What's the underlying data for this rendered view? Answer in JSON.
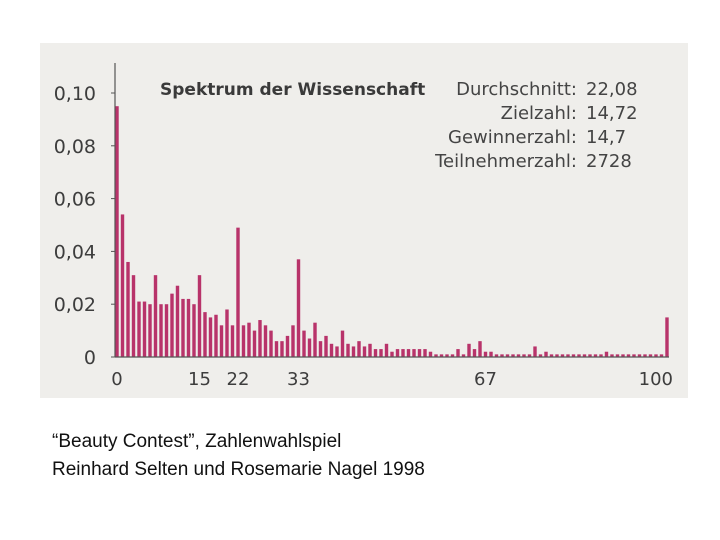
{
  "chart_data": {
    "type": "bar",
    "title": "Spektrum der Wissenschaft",
    "xlim": [
      0,
      100
    ],
    "ylim": [
      0,
      0.1
    ],
    "y_ticks": [
      "0,10",
      "0,08",
      "0,06",
      "0,04",
      "0,02",
      "0"
    ],
    "x_ticks": [
      "0",
      "15",
      "22",
      "33",
      "67",
      "100"
    ],
    "bar_color": "#b8336a",
    "x": [
      0,
      1,
      2,
      3,
      4,
      5,
      6,
      7,
      8,
      9,
      10,
      11,
      12,
      13,
      14,
      15,
      16,
      17,
      18,
      19,
      20,
      21,
      22,
      23,
      24,
      25,
      26,
      27,
      28,
      29,
      30,
      31,
      32,
      33,
      34,
      35,
      36,
      37,
      38,
      39,
      40,
      41,
      42,
      43,
      44,
      45,
      46,
      47,
      48,
      49,
      50,
      51,
      52,
      53,
      54,
      55,
      56,
      57,
      58,
      59,
      60,
      61,
      62,
      63,
      64,
      65,
      66,
      67,
      68,
      69,
      70,
      71,
      72,
      73,
      74,
      75,
      76,
      77,
      78,
      79,
      80,
      81,
      82,
      83,
      84,
      85,
      86,
      87,
      88,
      89,
      90,
      91,
      92,
      93,
      94,
      95,
      96,
      97,
      98,
      99,
      100
    ],
    "values": [
      0.095,
      0.054,
      0.036,
      0.031,
      0.021,
      0.021,
      0.02,
      0.031,
      0.02,
      0.02,
      0.024,
      0.027,
      0.022,
      0.022,
      0.02,
      0.031,
      0.017,
      0.015,
      0.016,
      0.012,
      0.018,
      0.012,
      0.049,
      0.012,
      0.013,
      0.01,
      0.014,
      0.012,
      0.01,
      0.006,
      0.006,
      0.008,
      0.012,
      0.037,
      0.01,
      0.007,
      0.013,
      0.006,
      0.008,
      0.005,
      0.004,
      0.01,
      0.005,
      0.004,
      0.006,
      0.004,
      0.005,
      0.003,
      0.003,
      0.005,
      0.002,
      0.003,
      0.003,
      0.003,
      0.003,
      0.003,
      0.003,
      0.002,
      0.001,
      0.001,
      0.001,
      0.001,
      0.003,
      0.001,
      0.005,
      0.003,
      0.006,
      0.002,
      0.002,
      0.001,
      0.001,
      0.001,
      0.001,
      0.001,
      0.001,
      0.001,
      0.004,
      0.001,
      0.002,
      0.001,
      0.001,
      0.001,
      0.001,
      0.001,
      0.001,
      0.001,
      0.001,
      0.001,
      0.001,
      0.002,
      0.001,
      0.001,
      0.001,
      0.001,
      0.001,
      0.001,
      0.001,
      0.001,
      0.001,
      0.001,
      0.015
    ],
    "stats": [
      {
        "label": "Durchschnitt:",
        "value": "22,08"
      },
      {
        "label": "Zielzahl:",
        "value": "14,72"
      },
      {
        "label": "Gewinnerzahl:",
        "value": "14,7"
      },
      {
        "label": "Teilnehmerzahl:",
        "value": "2728"
      }
    ]
  },
  "caption": {
    "line1": "“Beauty Contest”, Zahlenwahlspiel",
    "line2": "Reinhard Selten und Rosemarie Nagel 1998"
  }
}
